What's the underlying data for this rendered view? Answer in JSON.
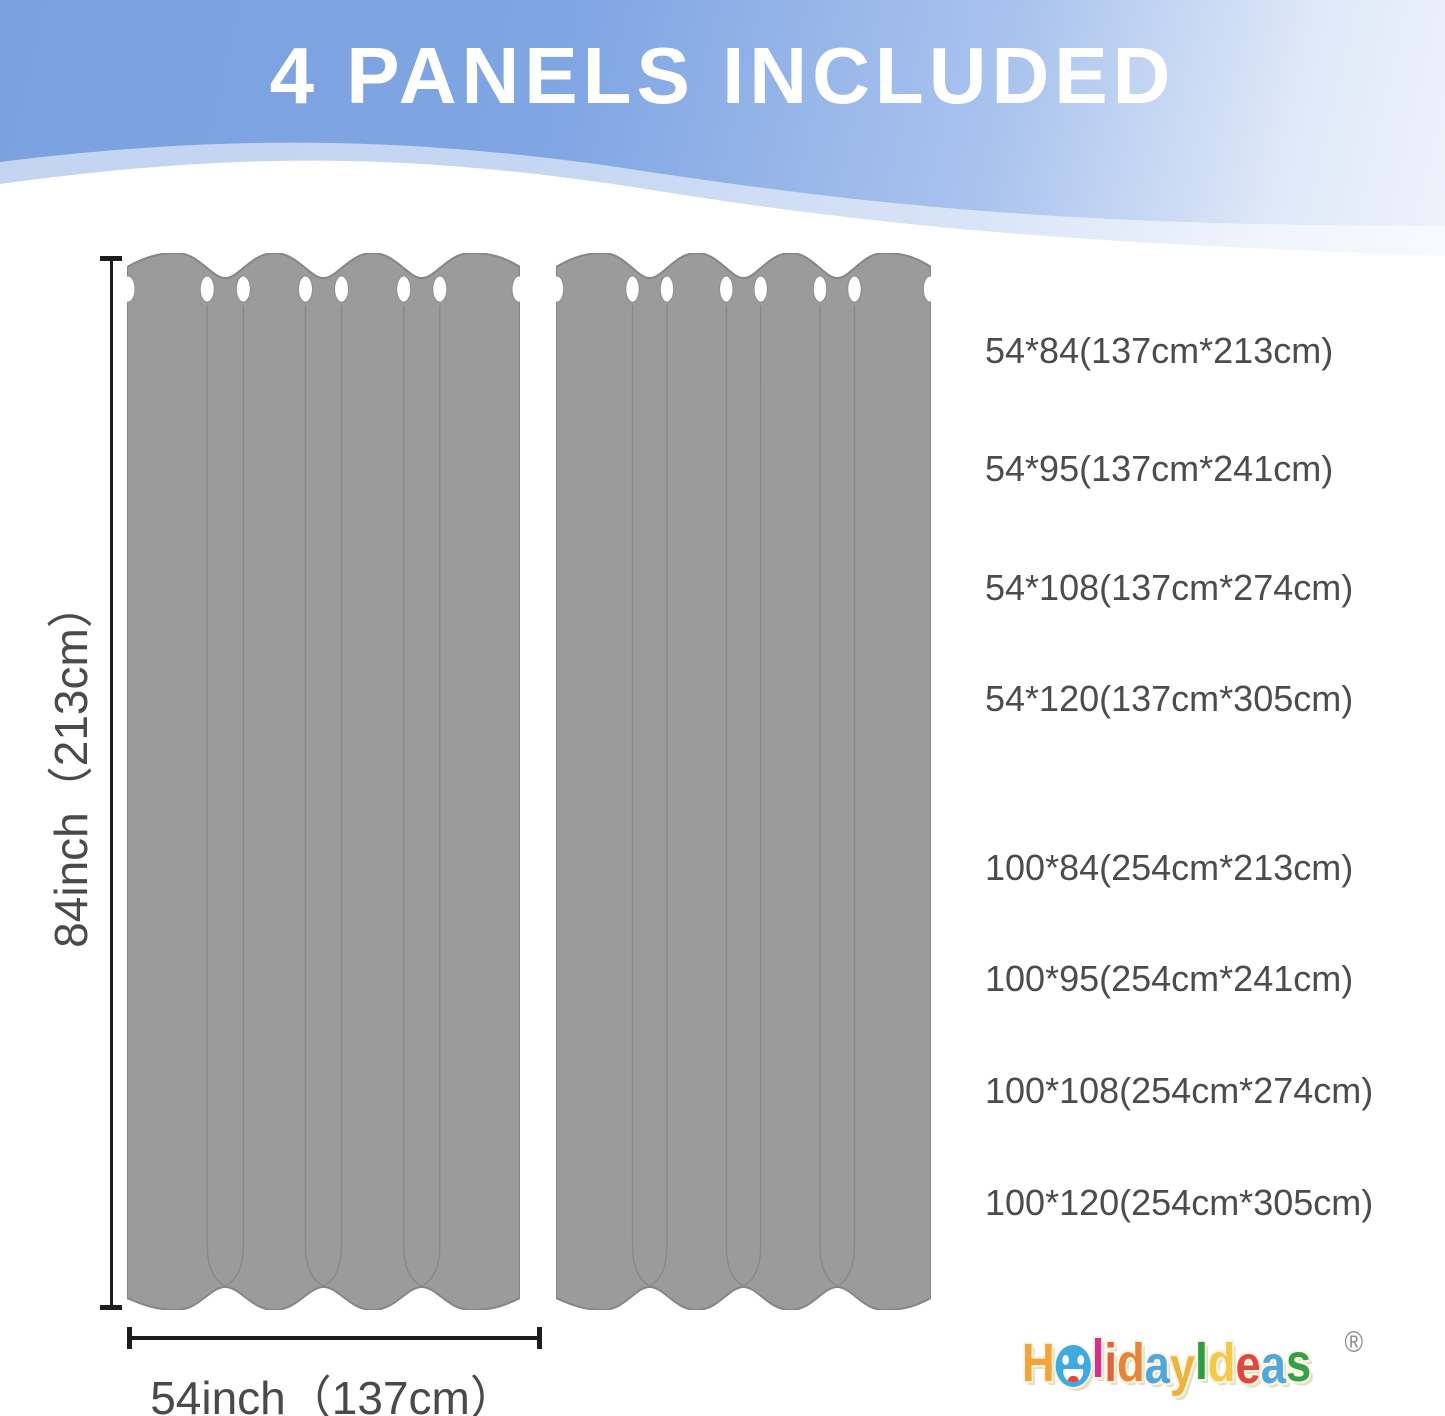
{
  "header": {
    "title": "4 PANELS INCLUDED"
  },
  "dimensions": {
    "height_label": "84inch（213cm）",
    "width_label": "54inch（137cm）"
  },
  "size_options": {
    "group_54": [
      "54*84(137cm*213cm)",
      "54*95(137cm*241cm)",
      "54*108(137cm*274cm)",
      "54*120(137cm*305cm)"
    ],
    "group_100": [
      "100*84(254cm*213cm)",
      "100*95(254cm*241cm)",
      "100*108(254cm*274cm)",
      "100*120(254cm*305cm)"
    ]
  },
  "brand": {
    "name": "HolidayIdeas",
    "registered_mark": "®",
    "letter_colors": [
      "#F2A53B",
      "#3FA9E0",
      "#D6308A",
      "#E0643B",
      "#E8833A",
      "#4FA8DC",
      "#EBB440",
      "#2E9E44",
      "#F2C94C",
      "#E0483E",
      "#4FA8DC",
      "#35A048"
    ]
  },
  "colors": {
    "banner_blue": "#7BA1E0",
    "banner_light": "#EEF3FB",
    "curtain_gray": "#9B9B9B",
    "curtain_outline": "#868686",
    "dimension_line": "#1D1D1D",
    "label_text": "#4A4A4A"
  }
}
